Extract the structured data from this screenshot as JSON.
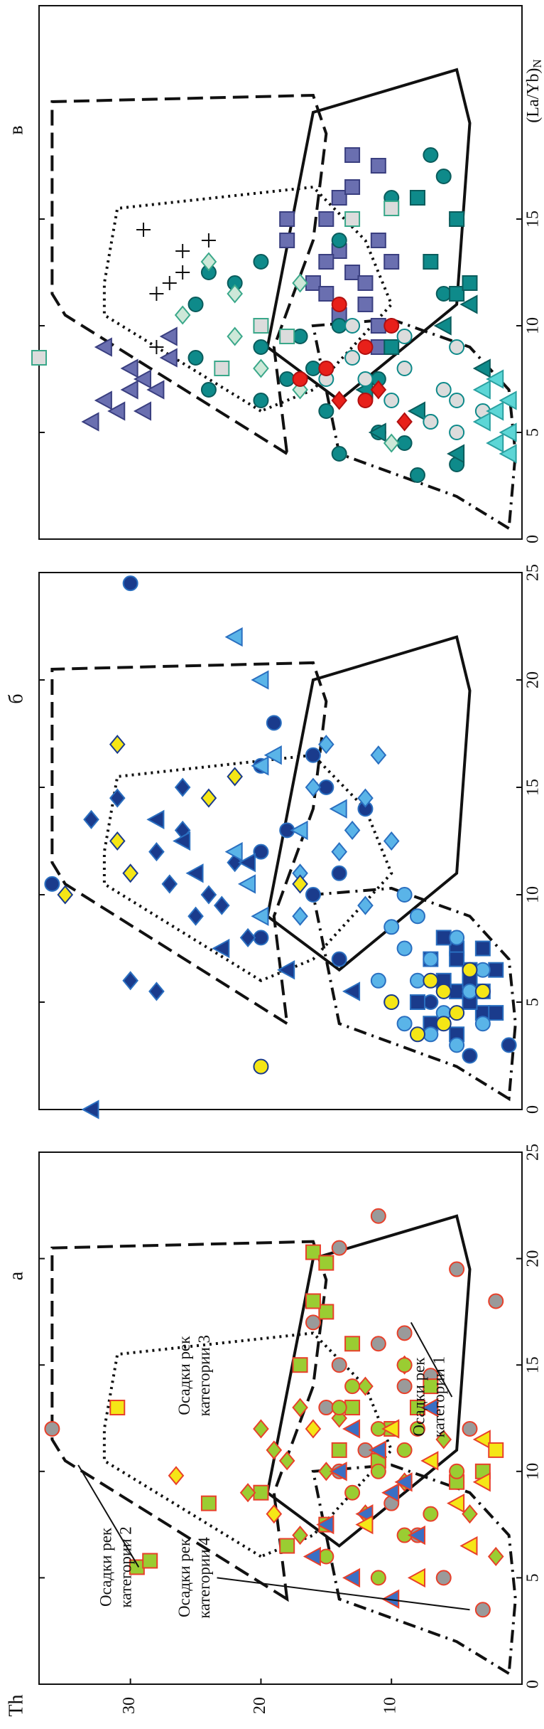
{
  "chart_data": [
    {
      "type": "scatter",
      "title": "а",
      "xlim": [
        0,
        25
      ],
      "ylim": [
        0,
        37
      ],
      "xticks": [
        0,
        5,
        10,
        15,
        20,
        25
      ],
      "yticks": [
        10,
        20,
        30
      ],
      "ylabel": "Th",
      "annotations": [
        [
          "Осадки рек",
          "категории 1"
        ],
        [
          "Осадки рек",
          "категории 2"
        ],
        [
          "Осадки рек",
          "категории 3"
        ],
        [
          "Осадки рек",
          "категории 4"
        ]
      ],
      "series": [
        {
          "marker": "circle",
          "color": "#9a9a9a",
          "edge": "#e8402a",
          "x": [
            3.5,
            5,
            7,
            8.5,
            9.5,
            11,
            12,
            13,
            14,
            15,
            16,
            17,
            18,
            19.5,
            20.5,
            22,
            12,
            14.5,
            10,
            16.5
          ],
          "values": [
            3,
            6,
            8,
            10,
            5,
            12,
            4,
            15,
            9,
            14,
            11,
            16,
            2,
            5,
            14,
            11,
            36,
            7,
            14,
            9
          ]
        },
        {
          "marker": "square",
          "color": "#9acd32",
          "edge": "#e8402a",
          "x": [
            5.5,
            5.8,
            6.5,
            8.5,
            9,
            10,
            11,
            12,
            13,
            14,
            15,
            16,
            17.5,
            18,
            20.3,
            19.8,
            13,
            10.5,
            7.5,
            9.5
          ],
          "values": [
            29.5,
            28.5,
            18,
            24,
            20,
            3,
            14,
            10,
            13,
            7,
            17,
            13,
            15,
            16,
            16,
            15,
            8,
            11,
            15,
            5
          ]
        },
        {
          "marker": "diamond",
          "color": "#9acd32",
          "edge": "#e8402a",
          "x": [
            6,
            7,
            8,
            9,
            10,
            11,
            12,
            13,
            14,
            15,
            11.5,
            9.5,
            8,
            12.5,
            10.5
          ],
          "values": [
            2,
            17,
            12,
            21,
            15,
            19,
            20,
            17,
            12,
            9,
            6,
            9,
            4,
            14,
            18
          ]
        },
        {
          "marker": "circle",
          "color": "#9acd32",
          "edge": "#e8402a",
          "x": [
            5,
            6,
            7,
            8,
            9,
            10,
            11,
            12,
            13,
            14,
            15,
            10,
            12
          ],
          "values": [
            11,
            15,
            9,
            7,
            13,
            11,
            9,
            8,
            14,
            13,
            9,
            5,
            11
          ]
        },
        {
          "marker": "triangle",
          "color": "#3a6fc4",
          "edge": "#e8402a",
          "x": [
            4,
            5,
            6,
            7,
            8,
            9,
            10,
            11,
            12,
            13,
            7.5,
            9.5
          ],
          "values": [
            10,
            13,
            16,
            8,
            12,
            10,
            14,
            11,
            13,
            7,
            15,
            9
          ]
        },
        {
          "marker": "triangle",
          "color": "#f5e616",
          "edge": "#e8402a",
          "x": [
            5,
            6.5,
            7.5,
            8.5,
            9.5,
            10.5,
            11.5,
            12
          ],
          "values": [
            8,
            4,
            12,
            5,
            3,
            7,
            3,
            10
          ]
        },
        {
          "marker": "square",
          "color": "#f5e616",
          "edge": "#e8402a",
          "x": [
            13,
            11
          ],
          "values": [
            31,
            2
          ]
        },
        {
          "marker": "diamond",
          "color": "#f5e616",
          "edge": "#e8402a",
          "x": [
            9.8,
            8,
            12
          ],
          "values": [
            26.5,
            19,
            16
          ]
        }
      ]
    },
    {
      "type": "scatter",
      "title": "б",
      "xlim": [
        0,
        25
      ],
      "ylim": [
        0,
        37
      ],
      "xticks": [
        0,
        5,
        10,
        15,
        20,
        25
      ],
      "series": [
        {
          "marker": "circle",
          "color": "#1a3b8c",
          "edge": "#2a6fc0",
          "x": [
            10.5,
            24.5,
            18,
            16,
            15,
            13,
            12,
            10,
            8,
            7,
            5,
            2.5,
            3,
            14,
            16.5,
            11
          ],
          "values": [
            36,
            30,
            19,
            20,
            15,
            18,
            20,
            16,
            20,
            14,
            7,
            4,
            1,
            12,
            16,
            14
          ]
        },
        {
          "marker": "square",
          "color": "#1a3b8c",
          "edge": "#2a6fc0",
          "x": [
            3.5,
            4,
            4.5,
            5,
            5.5,
            6,
            6.5,
            7,
            7.5,
            8,
            4.5,
            5.5,
            6.5,
            7.5,
            5,
            6,
            7
          ],
          "values": [
            5,
            7,
            3,
            8,
            5,
            6,
            4,
            7,
            5,
            6,
            2,
            3,
            2,
            3,
            4,
            4,
            5
          ]
        },
        {
          "marker": "diamond",
          "color": "#1a3b8c",
          "edge": "#2a6fc0",
          "x": [
            6,
            5.5,
            9,
            13.5,
            14.5,
            12,
            10,
            11.5,
            8,
            9.5,
            13,
            15,
            10.5
          ],
          "values": [
            30,
            28,
            25,
            33,
            31,
            28,
            24,
            22,
            21,
            23,
            26,
            26,
            27
          ]
        },
        {
          "marker": "triangle",
          "color": "#1a3b8c",
          "edge": "#2a6fc0",
          "x": [
            0,
            6.5,
            5.5,
            7.5,
            11,
            11.5,
            12.5,
            13.5
          ],
          "values": [
            33,
            18,
            13,
            23,
            25,
            21,
            26,
            28
          ]
        },
        {
          "marker": "circle",
          "color": "#5ab4e8",
          "edge": "#2a6fc0",
          "x": [
            3,
            3.5,
            4,
            4.5,
            5,
            5.5,
            6,
            6.5,
            7,
            7.5,
            8,
            8.5,
            9,
            10,
            4,
            6
          ],
          "values": [
            5,
            7,
            9,
            6,
            10,
            4,
            8,
            3,
            7,
            9,
            5,
            10,
            8,
            9,
            3,
            11
          ]
        },
        {
          "marker": "triangle",
          "color": "#5ab4e8",
          "edge": "#2a6fc0",
          "x": [
            22,
            20,
            16,
            12,
            9,
            10.5,
            13,
            16.5,
            14
          ],
          "values": [
            22,
            20,
            20,
            22,
            20,
            21,
            17,
            19,
            14
          ]
        },
        {
          "marker": "diamond",
          "color": "#5ab4e8",
          "edge": "#2a6fc0",
          "x": [
            12,
            13,
            14.5,
            15,
            16.5,
            17,
            9.5,
            11,
            12.5,
            9
          ],
          "values": [
            14,
            13,
            12,
            16,
            11,
            15,
            12,
            17,
            10,
            17
          ]
        },
        {
          "marker": "circle",
          "color": "#f5e616",
          "edge": "#1a3b8c",
          "x": [
            2,
            3.5,
            4.5,
            5,
            5.5,
            6,
            6.5,
            4,
            5.5
          ],
          "values": [
            20,
            8,
            5,
            10,
            3,
            7,
            4,
            6,
            6
          ]
        },
        {
          "marker": "diamond",
          "color": "#f5e616",
          "edge": "#1a3b8c",
          "x": [
            10,
            11,
            12.5,
            14.5,
            15.5,
            10.5,
            17
          ],
          "values": [
            35,
            30,
            31,
            24,
            22,
            17,
            31
          ]
        }
      ]
    },
    {
      "type": "scatter",
      "title": "в",
      "xlim": [
        0,
        25
      ],
      "ylim": [
        0,
        37
      ],
      "xticks": [
        0,
        5,
        10,
        15
      ],
      "xlabel": {
        "text": "(La/Yb)",
        "sub": "N"
      },
      "series": [
        {
          "marker": "square",
          "color": "#6a6fb0",
          "edge": "#3a3f80",
          "x": [
            18,
            16,
            15,
            14,
            13.5,
            13,
            12.5,
            12,
            11.5,
            11,
            10.5,
            10,
            9,
            13,
            14,
            12,
            15,
            16.5,
            17.5
          ],
          "values": [
            13,
            14,
            18,
            18,
            14,
            15,
            13,
            16,
            15,
            12,
            14,
            11,
            11,
            10,
            11,
            12,
            15,
            13,
            11
          ]
        },
        {
          "marker": "triangle",
          "color": "#6a6fb0",
          "edge": "#3a3f80",
          "x": [
            5.5,
            6,
            6.5,
            7,
            7.5,
            8,
            8.5,
            9,
            9.5,
            6,
            7
          ],
          "values": [
            33,
            31,
            32,
            28,
            29,
            30,
            27,
            32,
            27,
            29,
            30
          ]
        },
        {
          "marker": "circle",
          "color": "#0e8a8a",
          "edge": "#0a5c5c",
          "x": [
            3,
            3.5,
            4,
            4.5,
            5,
            5.5,
            6,
            6.5,
            7,
            7.5,
            8,
            8.5,
            9,
            10,
            11,
            12,
            13,
            14,
            15,
            16,
            17,
            18,
            12.5,
            9.5,
            11.5,
            7.5
          ],
          "values": [
            8,
            5,
            14,
            9,
            11,
            7,
            15,
            20,
            24,
            18,
            16,
            25,
            20,
            14,
            25,
            22,
            20,
            14,
            5,
            10,
            6,
            7,
            24,
            17,
            6,
            11
          ]
        },
        {
          "marker": "square",
          "color": "#0e8a8a",
          "edge": "#0a5c5c",
          "x": [
            9,
            11.5,
            13,
            15,
            16,
            12
          ],
          "values": [
            10,
            5,
            7,
            5,
            8,
            4
          ]
        },
        {
          "marker": "triangle",
          "color": "#0e8a8a",
          "edge": "#0a5c5c",
          "x": [
            10,
            8,
            6,
            7,
            5,
            4,
            11
          ],
          "values": [
            6,
            3,
            8,
            12,
            11,
            5,
            4
          ]
        },
        {
          "marker": "circle",
          "color": "#dcdcdc",
          "edge": "#0e8a8a",
          "x": [
            5,
            5.5,
            6,
            6.5,
            7,
            7.5,
            8,
            8.5,
            9,
            9.5,
            10,
            7.5,
            6.5
          ],
          "values": [
            5,
            7,
            3,
            10,
            6,
            12,
            9,
            13,
            5,
            9,
            13,
            15,
            5
          ]
        },
        {
          "marker": "square",
          "color": "#dcdcdc",
          "edge": "#3aa88a",
          "x": [
            8.5,
            9.5,
            15.5,
            15,
            10,
            8
          ],
          "values": [
            37,
            18,
            10,
            13,
            20,
            23
          ]
        },
        {
          "marker": "diamond",
          "color": "#cde8d8",
          "edge": "#3aa88a",
          "x": [
            4.5,
            7,
            8,
            9.5,
            10.5,
            11.5,
            12,
            13
          ],
          "values": [
            10,
            17,
            20,
            22,
            26,
            22,
            17,
            24
          ]
        },
        {
          "marker": "circle",
          "color": "#e8201a",
          "edge": "#b01010",
          "x": [
            6.5,
            7.5,
            8,
            9,
            10,
            11
          ],
          "values": [
            12,
            17,
            15,
            12,
            10,
            14
          ]
        },
        {
          "marker": "diamond",
          "color": "#e8201a",
          "edge": "#b01010",
          "x": [
            5.5,
            6.5,
            7
          ],
          "values": [
            9,
            14,
            11
          ]
        },
        {
          "marker": "triangle",
          "color": "#5cd6d6",
          "edge": "#2aa0a0",
          "x": [
            4,
            4.5,
            5,
            5.5,
            6,
            6.5,
            7,
            7.5
          ],
          "values": [
            1,
            2,
            1,
            3,
            2,
            1,
            3,
            2
          ]
        },
        {
          "marker": "cross",
          "color": "#111111",
          "edge": "#111111",
          "x": [
            14.5,
            13.5,
            12.5,
            12,
            11.5,
            14,
            9
          ],
          "values": [
            29,
            26,
            26,
            27,
            28,
            24,
            28
          ]
        }
      ]
    }
  ],
  "fields": [
    {
      "style": "dashed",
      "x": [
        4,
        10.5,
        11.5,
        20.5,
        20.8,
        19,
        14,
        9
      ],
      "y": [
        18,
        35,
        36,
        36,
        16,
        15,
        16,
        19
      ]
    },
    {
      "style": "solid",
      "x": [
        9,
        20,
        22,
        19.5,
        11,
        6.5,
        9
      ],
      "y": [
        19.5,
        16,
        5,
        4,
        5,
        14,
        19.5
      ]
    },
    {
      "style": "dotted",
      "x": [
        6,
        10.5,
        12,
        15.5,
        16.5,
        14,
        11,
        7,
        6
      ],
      "y": [
        20,
        32,
        32,
        31,
        16,
        12,
        10,
        16,
        20
      ]
    },
    {
      "style": "dashdot",
      "x": [
        0.5,
        2,
        4,
        10,
        10.3,
        9,
        7,
        4,
        0.5
      ],
      "y": [
        1,
        5,
        14,
        16,
        10,
        4,
        1,
        0.5,
        1
      ]
    }
  ]
}
